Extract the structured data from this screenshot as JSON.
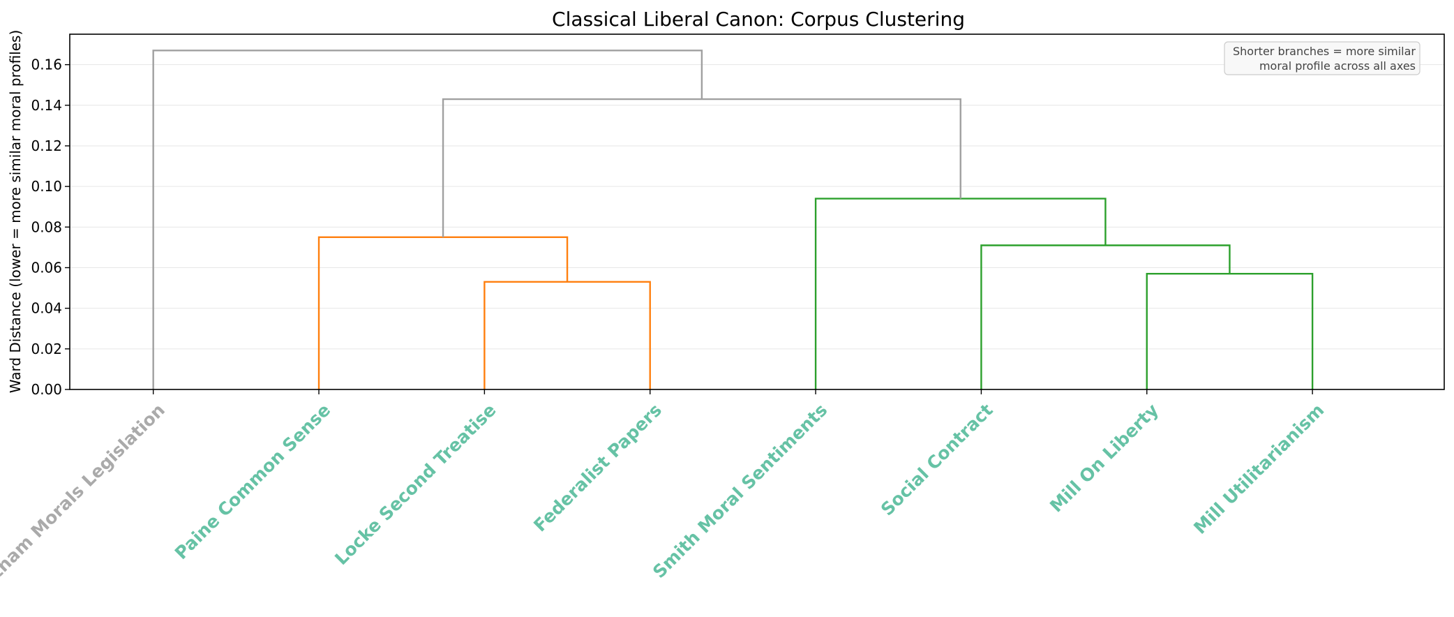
{
  "chart_data": {
    "type": "dendrogram",
    "title": "Classical Liberal Canon: Corpus Clustering",
    "xlabel": "",
    "ylabel": "Ward Distance (lower = more similar moral profiles)",
    "ylim": [
      0,
      0.175
    ],
    "yticks": [
      0.0,
      0.02,
      0.04,
      0.06,
      0.08,
      0.1,
      0.12,
      0.14,
      0.16
    ],
    "grid": "horizontal",
    "leaves": [
      {
        "label": "Bentham Morals Legislation",
        "color": "#aaaaaa"
      },
      {
        "label": "Paine Common Sense",
        "color": "#66c2a5"
      },
      {
        "label": "Locke Second Treatise",
        "color": "#66c2a5"
      },
      {
        "label": "Federalist Papers",
        "color": "#66c2a5"
      },
      {
        "label": "Smith Moral Sentiments",
        "color": "#66c2a5"
      },
      {
        "label": "Social Contract",
        "color": "#66c2a5"
      },
      {
        "label": "Mill On Liberty",
        "color": "#66c2a5"
      },
      {
        "label": "Mill Utilitarianism",
        "color": "#66c2a5"
      }
    ],
    "merges": [
      {
        "left": "leaf:2",
        "right": "leaf:3",
        "height": 0.053,
        "color": "#ff7f0e"
      },
      {
        "left": "leaf:1",
        "right": "node:0",
        "height": 0.075,
        "color": "#ff7f0e"
      },
      {
        "left": "leaf:6",
        "right": "leaf:7",
        "height": 0.057,
        "color": "#2ca02c"
      },
      {
        "left": "leaf:5",
        "right": "node:2",
        "height": 0.071,
        "color": "#2ca02c"
      },
      {
        "left": "leaf:4",
        "right": "node:3",
        "height": 0.094,
        "color": "#2ca02c"
      },
      {
        "left": "node:1",
        "right": "node:4",
        "height": 0.143,
        "color": "#a0a0a0"
      },
      {
        "left": "leaf:0",
        "right": "node:5",
        "height": 0.167,
        "color": "#a0a0a0"
      }
    ],
    "annotation": {
      "lines": [
        "Shorter branches = more similar",
        "moral profile across all axes"
      ],
      "placement": "top-right"
    }
  }
}
